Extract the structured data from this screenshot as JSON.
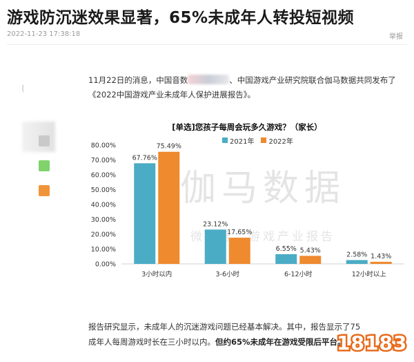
{
  "article": {
    "headline": "游戏防沉迷效果显著，65%未成年人转投短视频",
    "timestamp": "2022-11-23 17:38:18",
    "report_label": "举报",
    "intro_pre": "11月22日的消息，中国音数",
    "intro_post": "、中国游戏产业研究院联合伽马数据共同发布了《2022中国游戏产业未成年人保护进展报告》。",
    "body_part1": "报告研究显示，未成年人的沉迷游戏问题已经基本解决。其中，报告显示了75",
    "body_part2": "成年人每周游戏时长在三小时以内。",
    "body_strong": "但约65%未成年在游戏受限后",
    "body_tail": "平台。"
  },
  "watermark": {
    "main": "伽马数据",
    "sub": "微信号：游戏产业报告"
  },
  "brand_logo_text": "18183",
  "colors": {
    "series_2021": "#4bacc6",
    "series_2022": "#ef8a2f",
    "side_gray": "#c9c9c9",
    "side_green": "#7fd36a",
    "side_orange": "#f0943a"
  },
  "chart_data": {
    "type": "bar",
    "title": "[单选]您孩子每周会玩多久游戏？（家长）",
    "categories": [
      "3小时以内",
      "3-6小时",
      "6-12小时",
      "12小时以上"
    ],
    "series": [
      {
        "name": "2021年",
        "values": [
          67.76,
          23.12,
          6.55,
          2.58
        ],
        "labels": [
          "67.76%",
          "23.12%",
          "6.55%",
          "2.58%"
        ]
      },
      {
        "name": "2022年",
        "values": [
          75.49,
          17.65,
          5.43,
          1.43
        ],
        "labels": [
          "75.49%",
          "17.65%",
          "5.43%",
          "1.43%"
        ]
      }
    ],
    "y_ticks": [
      "0.00%",
      "10.00%",
      "20.00%",
      "30.00%",
      "40.00%",
      "50.00%",
      "60.00%",
      "70.00%",
      "80.00%"
    ],
    "ylim": [
      0,
      80
    ],
    "legend_position": "top-center",
    "grid": false
  }
}
